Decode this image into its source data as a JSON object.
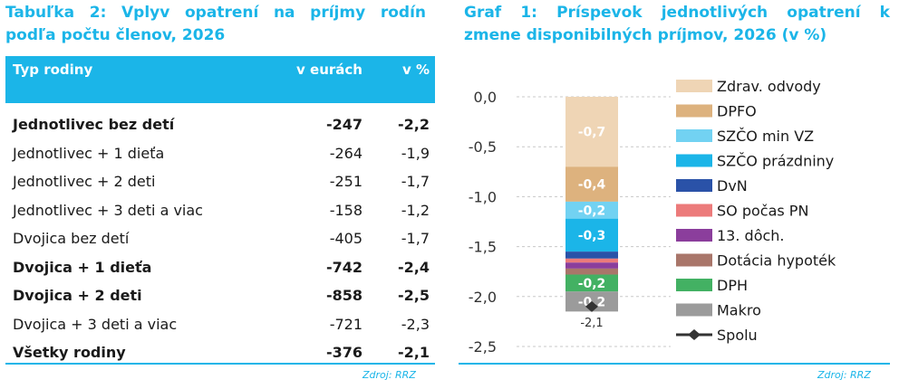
{
  "table": {
    "title_line1": "Tabuľka 2: Vplyv opatrení na príjmy rodín",
    "title_line2": "podľa počtu členov, 2026",
    "headers": {
      "type": "Typ rodiny",
      "eur": "v eurách",
      "pct": "v %"
    },
    "rows": [
      {
        "name": "Jednotlivec bez detí",
        "eur": "-247",
        "pct": "-2,2",
        "bold": true
      },
      {
        "name": "Jednotlivec + 1 dieťa",
        "eur": "-264",
        "pct": "-1,9",
        "bold": false
      },
      {
        "name": "Jednotlivec + 2 deti",
        "eur": "-251",
        "pct": "-1,7",
        "bold": false
      },
      {
        "name": "Jednotlivec + 3 deti a viac",
        "eur": "-158",
        "pct": "-1,2",
        "bold": false
      },
      {
        "name": "Dvojica bez detí",
        "eur": "-405",
        "pct": "-1,7",
        "bold": false
      },
      {
        "name": "Dvojica + 1 dieťa",
        "eur": "-742",
        "pct": "-2,4",
        "bold": true
      },
      {
        "name": "Dvojica + 2 deti",
        "eur": "-858",
        "pct": "-2,5",
        "bold": true
      },
      {
        "name": "Dvojica + 3 deti a viac",
        "eur": "-721",
        "pct": "-2,3",
        "bold": false
      },
      {
        "name": "Všetky rodiny",
        "eur": "-376",
        "pct": "-2,1",
        "bold": true
      }
    ],
    "source": "Zdroj: RRZ",
    "accent": "#1bb5e8"
  },
  "chart_data": {
    "type": "bar",
    "stacked": true,
    "title_line1": "Graf 1: Príspevok jednotlivých opatrení k",
    "title_line2": "zmene disponibilných príjmov, 2026 (v %)",
    "ylim": [
      -2.5,
      0.0
    ],
    "yticks": [
      "0,0",
      "-0,5",
      "-1,0",
      "-1,5",
      "-2,0",
      "-2,5"
    ],
    "ytick_values": [
      0.0,
      -0.5,
      -1.0,
      -1.5,
      -2.0,
      -2.5
    ],
    "grid": "horizontal-dashed",
    "legend_position": "right",
    "series": [
      {
        "name": "Zdrav. odvody",
        "value": -0.7,
        "label": "-0,7",
        "color": "#efd5b5"
      },
      {
        "name": "DPFO",
        "value": -0.35,
        "label": "-0,4",
        "color": "#ddb27e"
      },
      {
        "name": "SZČO min VZ",
        "value": -0.17,
        "label": "-0,2",
        "color": "#72d2f2"
      },
      {
        "name": "SZČO prázdniny",
        "value": -0.33,
        "label": "-0,3",
        "color": "#1bb5e8"
      },
      {
        "name": "DvN",
        "value": -0.07,
        "label": "",
        "color": "#2a52a8"
      },
      {
        "name": "SO počas PN",
        "value": -0.04,
        "label": "",
        "color": "#ec7b7b"
      },
      {
        "name": "13. dôch.",
        "value": -0.06,
        "label": "",
        "color": "#8b3e9c"
      },
      {
        "name": "Dotácia hypoték",
        "value": -0.06,
        "label": "",
        "color": "#a9766a"
      },
      {
        "name": "DPH",
        "value": -0.17,
        "label": "-0,2",
        "color": "#43b163"
      },
      {
        "name": "Makro",
        "value": -0.2,
        "label": "-0,2",
        "color": "#9b9b9b"
      }
    ],
    "total": {
      "name": "Spolu",
      "value": -2.1,
      "label": "-2,1",
      "color": "#333333"
    },
    "source": "Zdroj: RRZ"
  }
}
